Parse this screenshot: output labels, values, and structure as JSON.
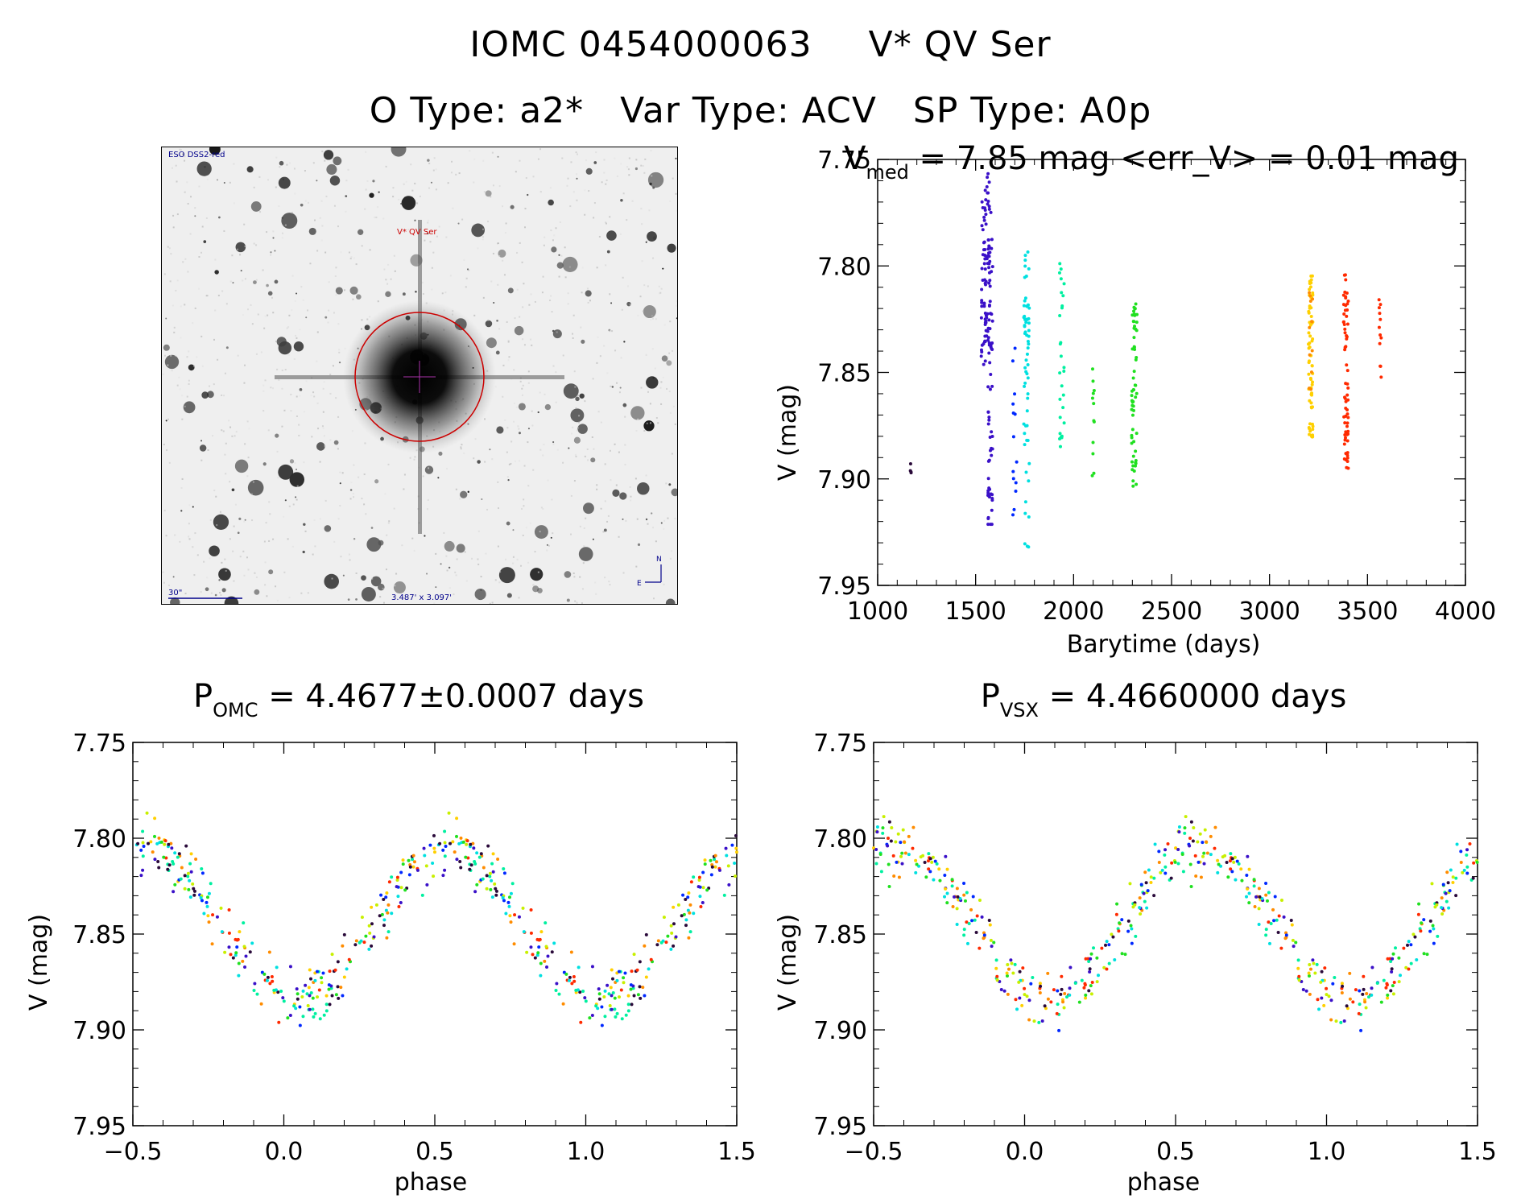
{
  "header": {
    "line1_id": "IOMC 0454000063",
    "line1_name": "V* QV Ser",
    "line2_otype": "O Type: a2*",
    "line2_vartype": "Var Type: ACV",
    "line2_sptype": "SP Type: A0p"
  },
  "image_panel": {
    "survey_label": "ESO DSS2-red",
    "target_label": "V* QV Ser",
    "scale_label": "30\"",
    "size_label": "3.487' x 3.097'",
    "north_label": "N",
    "east_label": "E"
  },
  "colors": {
    "axis": "#000000",
    "circle": "#cc0000",
    "survey_text": "#00008b",
    "series_palette": [
      "#2a0a3a",
      "#3a10c8",
      "#0028ff",
      "#00e0e0",
      "#00f0a0",
      "#20e020",
      "#c8f000",
      "#ffd000",
      "#ff8c00",
      "#ff2a00"
    ]
  },
  "chart_data": [
    {
      "id": "lightcurve",
      "type": "scatter",
      "title_main": "V",
      "title_sub": "med",
      "title_rest": " = 7.85 mag <err_V> = 0.01 mag",
      "xlabel": "Barytime (days)",
      "ylabel": "V (mag)",
      "xlim": [
        1000,
        4000
      ],
      "ylim": [
        7.95,
        7.75
      ],
      "xticks": [
        "1000",
        "1500",
        "2000",
        "2500",
        "3000",
        "3500",
        "4000"
      ],
      "xtick_values": [
        1000,
        1500,
        2000,
        2500,
        3000,
        3500,
        4000
      ],
      "yticks": [
        "7.75",
        "7.80",
        "7.85",
        "7.90",
        "7.95"
      ],
      "ytick_values": [
        7.75,
        7.8,
        7.85,
        7.9,
        7.95
      ],
      "series": [
        {
          "color_index": 0,
          "t_center": 1170,
          "t_spread": 4,
          "n": 4,
          "v_min": 7.892,
          "v_max": 7.898
        },
        {
          "color_index": 1,
          "t_center": 1550,
          "t_spread": 22,
          "n": 80,
          "v_min": 7.755,
          "v_max": 7.848
        },
        {
          "color_index": 1,
          "t_center": 1575,
          "t_spread": 12,
          "n": 70,
          "v_min": 7.772,
          "v_max": 7.922
        },
        {
          "color_index": 2,
          "t_center": 1700,
          "t_spread": 10,
          "n": 14,
          "v_min": 7.838,
          "v_max": 7.922
        },
        {
          "color_index": 3,
          "t_center": 1760,
          "t_spread": 14,
          "n": 60,
          "v_min": 7.793,
          "v_max": 7.937
        },
        {
          "color_index": 4,
          "t_center": 1940,
          "t_spread": 12,
          "n": 28,
          "v_min": 7.798,
          "v_max": 7.887
        },
        {
          "color_index": 5,
          "t_center": 2100,
          "t_spread": 6,
          "n": 12,
          "v_min": 7.843,
          "v_max": 7.905
        },
        {
          "color_index": 5,
          "t_center": 2310,
          "t_spread": 14,
          "n": 60,
          "v_min": 7.817,
          "v_max": 7.905
        },
        {
          "color_index": 7,
          "t_center": 3210,
          "t_spread": 12,
          "n": 70,
          "v_min": 7.804,
          "v_max": 7.882
        },
        {
          "color_index": 8,
          "t_center": 3210,
          "t_spread": 10,
          "n": 12,
          "v_min": 7.81,
          "v_max": 7.86
        },
        {
          "color_index": 9,
          "t_center": 3390,
          "t_spread": 12,
          "n": 65,
          "v_min": 7.804,
          "v_max": 7.897
        },
        {
          "color_index": 9,
          "t_center": 3565,
          "t_spread": 6,
          "n": 12,
          "v_min": 7.812,
          "v_max": 7.858
        }
      ]
    },
    {
      "id": "phase_omc",
      "type": "scatter",
      "title_main": "P",
      "title_sub": "OMC",
      "title_rest": " = 4.4677±0.0007 days",
      "xlabel": "phase",
      "ylabel": "V (mag)",
      "xlim": [
        -0.5,
        1.5
      ],
      "ylim": [
        7.95,
        7.75
      ],
      "xticks": [
        "−0.5",
        "0.0",
        "0.5",
        "1.0",
        "1.5"
      ],
      "xtick_values": [
        -0.5,
        0.0,
        0.5,
        1.0,
        1.5
      ],
      "yticks": [
        "7.75",
        "7.80",
        "7.85",
        "7.90",
        "7.95"
      ],
      "ytick_values": [
        7.75,
        7.8,
        7.85,
        7.9,
        7.95
      ],
      "curve": {
        "mean": 7.845,
        "amplitude": 0.04,
        "min_phase": 0.05,
        "scatter": 0.03,
        "n": 260
      }
    },
    {
      "id": "phase_vsx",
      "type": "scatter",
      "title_main": "P",
      "title_sub": "VSX",
      "title_rest": " = 4.4660000 days",
      "xlabel": "phase",
      "ylabel": "V (mag)",
      "xlim": [
        -0.5,
        1.5
      ],
      "ylim": [
        7.95,
        7.75
      ],
      "xticks": [
        "−0.5",
        "0.0",
        "0.5",
        "1.0",
        "1.5"
      ],
      "xtick_values": [
        -0.5,
        0.0,
        0.5,
        1.0,
        1.5
      ],
      "yticks": [
        "7.75",
        "7.80",
        "7.85",
        "7.90",
        "7.95"
      ],
      "ytick_values": [
        7.75,
        7.8,
        7.85,
        7.9,
        7.95
      ],
      "curve": {
        "mean": 7.845,
        "amplitude": 0.04,
        "min_phase": 0.08,
        "scatter": 0.032,
        "n": 260
      }
    }
  ]
}
